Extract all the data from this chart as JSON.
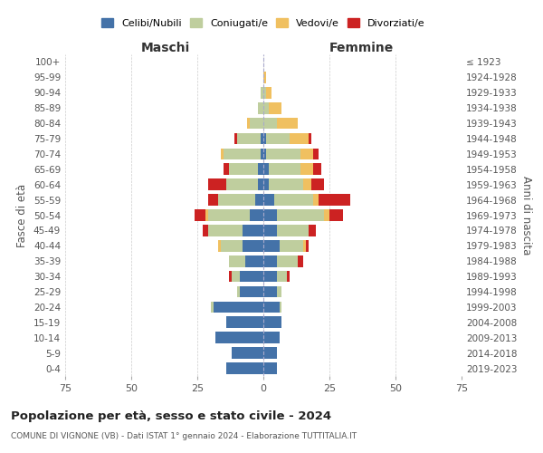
{
  "age_groups": [
    "0-4",
    "5-9",
    "10-14",
    "15-19",
    "20-24",
    "25-29",
    "30-34",
    "35-39",
    "40-44",
    "45-49",
    "50-54",
    "55-59",
    "60-64",
    "65-69",
    "70-74",
    "75-79",
    "80-84",
    "85-89",
    "90-94",
    "95-99",
    "100+"
  ],
  "birth_years": [
    "2019-2023",
    "2014-2018",
    "2009-2013",
    "2004-2008",
    "1999-2003",
    "1994-1998",
    "1989-1993",
    "1984-1988",
    "1979-1983",
    "1974-1978",
    "1969-1973",
    "1964-1968",
    "1959-1963",
    "1954-1958",
    "1949-1953",
    "1944-1948",
    "1939-1943",
    "1934-1938",
    "1929-1933",
    "1924-1928",
    "≤ 1923"
  ],
  "maschi": {
    "celibi": [
      14,
      12,
      18,
      14,
      19,
      9,
      9,
      7,
      8,
      8,
      5,
      3,
      2,
      2,
      1,
      1,
      0,
      0,
      0,
      0,
      0
    ],
    "coniugati": [
      0,
      0,
      0,
      0,
      1,
      1,
      3,
      6,
      8,
      13,
      16,
      14,
      12,
      11,
      14,
      9,
      5,
      2,
      1,
      0,
      0
    ],
    "vedovi": [
      0,
      0,
      0,
      0,
      0,
      0,
      0,
      0,
      1,
      0,
      1,
      0,
      0,
      0,
      1,
      0,
      1,
      0,
      0,
      0,
      0
    ],
    "divorziati": [
      0,
      0,
      0,
      0,
      0,
      0,
      1,
      0,
      0,
      2,
      4,
      4,
      7,
      2,
      0,
      1,
      0,
      0,
      0,
      0,
      0
    ]
  },
  "femmine": {
    "nubili": [
      5,
      5,
      6,
      7,
      6,
      5,
      5,
      5,
      6,
      5,
      5,
      4,
      2,
      2,
      1,
      1,
      0,
      0,
      0,
      0,
      0
    ],
    "coniugate": [
      0,
      0,
      0,
      0,
      1,
      2,
      4,
      8,
      9,
      12,
      18,
      15,
      13,
      12,
      13,
      9,
      5,
      2,
      1,
      0,
      0
    ],
    "vedove": [
      0,
      0,
      0,
      0,
      0,
      0,
      0,
      0,
      1,
      0,
      2,
      2,
      3,
      5,
      5,
      7,
      8,
      5,
      2,
      1,
      0
    ],
    "divorziate": [
      0,
      0,
      0,
      0,
      0,
      0,
      1,
      2,
      1,
      3,
      5,
      12,
      5,
      3,
      2,
      1,
      0,
      0,
      0,
      0,
      0
    ]
  },
  "colors": {
    "celibi": "#4472a8",
    "coniugati": "#bfce9e",
    "vedovi": "#f0c060",
    "divorziati": "#cc2222"
  },
  "title": "Popolazione per età, sesso e stato civile - 2024",
  "subtitle": "COMUNE DI VIGNONE (VB) - Dati ISTAT 1° gennaio 2024 - Elaborazione TUTTITALIA.IT",
  "xlabel_left": "Maschi",
  "xlabel_right": "Femmine",
  "ylabel_left": "Fasce di età",
  "ylabel_right": "Anni di nascita",
  "xlim": 75,
  "legend_labels": [
    "Celibi/Nubili",
    "Coniugati/e",
    "Vedovi/e",
    "Divorziati/e"
  ],
  "background_color": "#ffffff",
  "grid_color": "#cccccc"
}
